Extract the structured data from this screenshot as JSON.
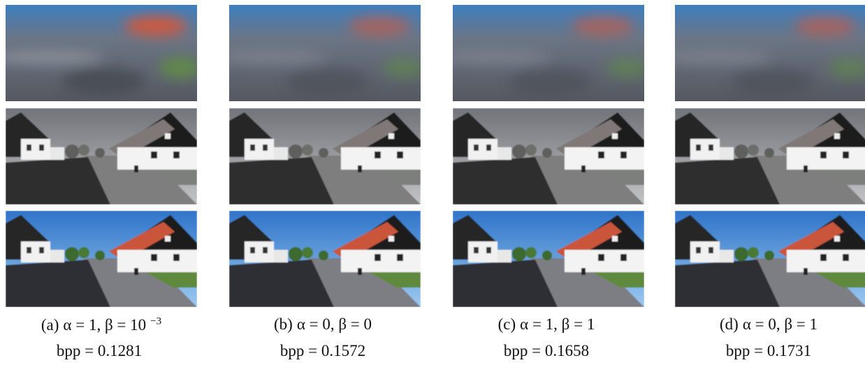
{
  "panels": [
    {
      "label": "(a)",
      "params": "α = 1, β = 10",
      "exponent": "−3",
      "bpp": "bpp = 0.1281"
    },
    {
      "label": "(b)",
      "params": "α = 0, β = 0",
      "bpp": "bpp = 0.1572"
    },
    {
      "label": "(c)",
      "params": "α = 1, β = 1",
      "bpp": "bpp = 0.1658"
    },
    {
      "label": "(d)",
      "params": "α = 0, β = 1",
      "bpp": "bpp = 0.1731"
    }
  ]
}
